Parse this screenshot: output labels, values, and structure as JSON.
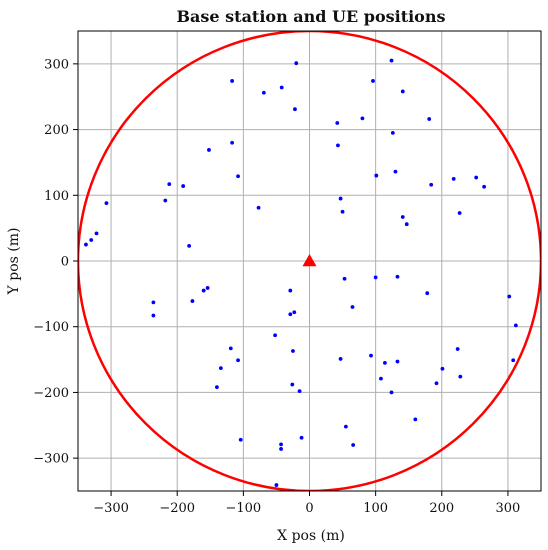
{
  "chart_data": {
    "type": "scatter",
    "title": "Base station and UE positions",
    "xlabel": "X pos (m)",
    "ylabel": "Y pos (m)",
    "xlim": [
      -350,
      350
    ],
    "ylim": [
      -350,
      350
    ],
    "xticks": [
      -300,
      -200,
      -100,
      0,
      100,
      200,
      300
    ],
    "yticks": [
      -300,
      -200,
      -100,
      0,
      100,
      200,
      300
    ],
    "grid": true,
    "colors": {
      "ue": "#0000ff",
      "base_station": "#ff0000",
      "coverage": "#ff0000"
    },
    "coverage_radius": 350,
    "base_station": {
      "x": 0,
      "y": 0
    },
    "ue_positions": [
      [
        -20,
        301
      ],
      [
        -117,
        274
      ],
      [
        -69,
        256
      ],
      [
        -42,
        264
      ],
      [
        -22,
        231
      ],
      [
        -117,
        180
      ],
      [
        -152,
        169
      ],
      [
        -212,
        117
      ],
      [
        -191,
        114
      ],
      [
        -108,
        129
      ],
      [
        -218,
        92
      ],
      [
        -77,
        81
      ],
      [
        -182,
        23
      ],
      [
        -307,
        88
      ],
      [
        -322,
        42
      ],
      [
        -330,
        32
      ],
      [
        -338,
        25
      ],
      [
        -236,
        -63
      ],
      [
        -236,
        -83
      ],
      [
        -154,
        -41
      ],
      [
        -160,
        -45
      ],
      [
        -177,
        -61
      ],
      [
        -29,
        -45
      ],
      [
        -23,
        -78
      ],
      [
        -29,
        -81
      ],
      [
        -52,
        -113
      ],
      [
        -119,
        -133
      ],
      [
        -108,
        -151
      ],
      [
        -134,
        -163
      ],
      [
        -140,
        -192
      ],
      [
        -25,
        -137
      ],
      [
        -26,
        -188
      ],
      [
        -15,
        -198
      ],
      [
        -104,
        -272
      ],
      [
        -12,
        -269
      ],
      [
        -43,
        -279
      ],
      [
        -43,
        -286
      ],
      [
        -50,
        -341
      ],
      [
        42,
        210
      ],
      [
        80,
        217
      ],
      [
        96,
        274
      ],
      [
        124,
        305
      ],
      [
        141,
        258
      ],
      [
        43,
        176
      ],
      [
        126,
        195
      ],
      [
        181,
        216
      ],
      [
        101,
        130
      ],
      [
        130,
        136
      ],
      [
        184,
        116
      ],
      [
        218,
        125
      ],
      [
        252,
        127
      ],
      [
        264,
        113
      ],
      [
        47,
        95
      ],
      [
        50,
        75
      ],
      [
        227,
        73
      ],
      [
        141,
        67
      ],
      [
        147,
        56
      ],
      [
        53,
        -27
      ],
      [
        100,
        -25
      ],
      [
        133,
        -24
      ],
      [
        178,
        -49
      ],
      [
        302,
        -54
      ],
      [
        47,
        -149
      ],
      [
        65,
        -70
      ],
      [
        93,
        -144
      ],
      [
        114,
        -155
      ],
      [
        133,
        -153
      ],
      [
        108,
        -179
      ],
      [
        124,
        -200
      ],
      [
        160,
        -241
      ],
      [
        192,
        -186
      ],
      [
        201,
        -164
      ],
      [
        224,
        -134
      ],
      [
        228,
        -176
      ],
      [
        308,
        -151
      ],
      [
        312,
        -98
      ],
      [
        55,
        -252
      ],
      [
        66,
        -280
      ]
    ]
  }
}
